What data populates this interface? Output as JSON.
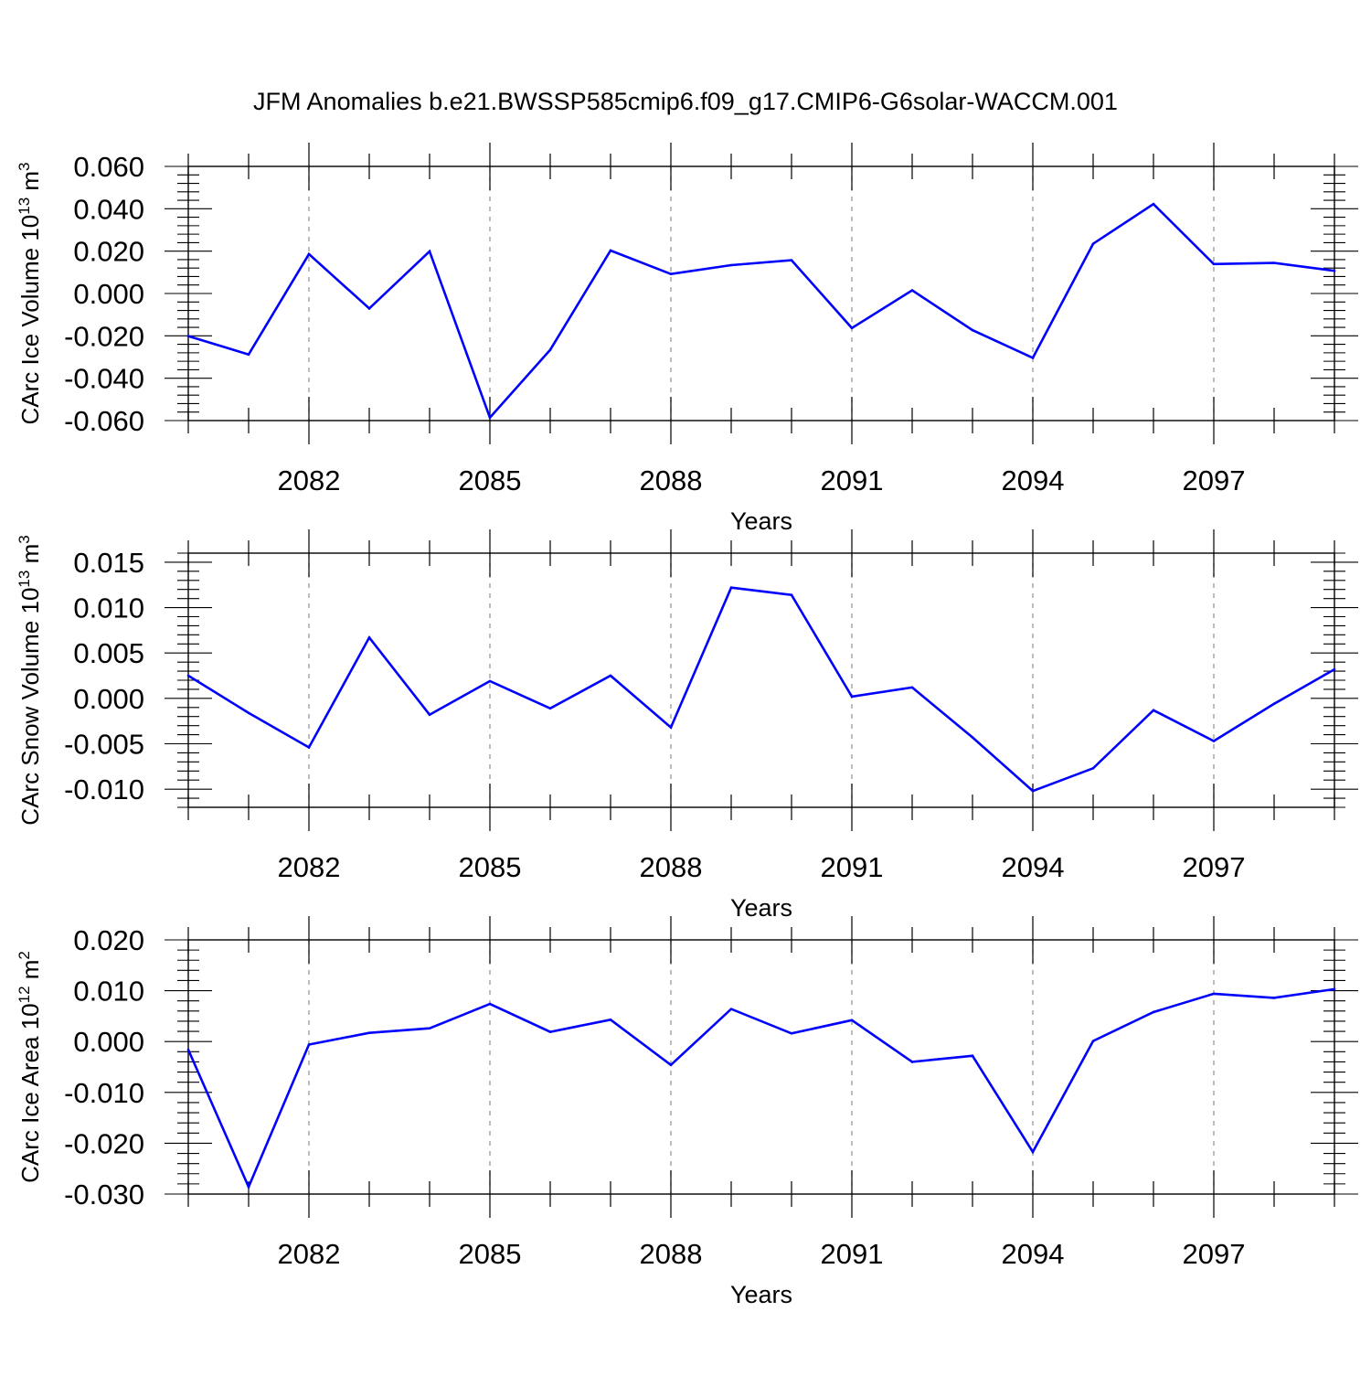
{
  "title": "JFM Anomalies b.e21.BWSSP585cmip6.f09_g17.CMIP6-G6solar-WACCM.001",
  "colors": {
    "line": "#0000ff",
    "axis": "#000000",
    "grid": "#999999"
  },
  "chart_data": [
    {
      "type": "line",
      "ylabel": {
        "main": "CArc Ice Volume 10",
        "exp": "13",
        "tail": " m",
        "unit_exp": "3"
      },
      "xlabel": "Years",
      "xlim": [
        2080,
        2099
      ],
      "ylim": [
        -0.06,
        0.06
      ],
      "yticks": [
        0.06,
        0.04,
        0.02,
        0.0,
        -0.02,
        -0.04,
        -0.06
      ],
      "ytick_labels": [
        "0.060",
        "0.040",
        "0.020",
        "0.000",
        "-0.020",
        "-0.040",
        "-0.060"
      ],
      "xticks": [
        2082,
        2085,
        2088,
        2091,
        2094,
        2097
      ],
      "xtick_labels": [
        "2082",
        "2085",
        "2088",
        "2091",
        "2094",
        "2097"
      ],
      "grid": "vertical dashed at labeled years",
      "x": [
        2080,
        2081,
        2082,
        2083,
        2084,
        2085,
        2086,
        2087,
        2088,
        2089,
        2090,
        2091,
        2092,
        2093,
        2094,
        2095,
        2096,
        2097,
        2098,
        2099
      ],
      "y": [
        -0.0201,
        -0.0288,
        0.0186,
        -0.0071,
        0.0199,
        -0.0586,
        -0.0266,
        0.0203,
        0.0092,
        0.0134,
        0.0157,
        -0.0163,
        0.0015,
        -0.0173,
        -0.0304,
        0.0235,
        0.0422,
        0.0139,
        0.0144,
        0.0107
      ]
    },
    {
      "type": "line",
      "ylabel": {
        "main": "CArc Snow Volume 10",
        "exp": "13",
        "tail": " m",
        "unit_exp": "3"
      },
      "xlabel": "Years",
      "xlim": [
        2080,
        2099
      ],
      "ylim": [
        -0.012,
        0.016
      ],
      "yticks": [
        0.015,
        0.01,
        0.005,
        0.0,
        -0.005,
        -0.01
      ],
      "ytick_labels": [
        "0.015",
        "0.010",
        "0.005",
        "0.000",
        "-0.005",
        "-0.010"
      ],
      "xticks": [
        2082,
        2085,
        2088,
        2091,
        2094,
        2097
      ],
      "xtick_labels": [
        "2082",
        "2085",
        "2088",
        "2091",
        "2094",
        "2097"
      ],
      "grid": "vertical dashed at labeled years",
      "x": [
        2080,
        2081,
        2082,
        2083,
        2084,
        2085,
        2086,
        2087,
        2088,
        2089,
        2090,
        2091,
        2092,
        2093,
        2094,
        2095,
        2096,
        2097,
        2098,
        2099
      ],
      "y": [
        0.0025,
        -0.0016,
        -0.0054,
        0.0067,
        -0.0018,
        0.0019,
        -0.0011,
        0.0025,
        -0.0032,
        0.0122,
        0.0114,
        0.0002,
        0.0012,
        -0.0043,
        -0.0102,
        -0.0077,
        -0.0013,
        -0.0047,
        -0.0006,
        0.0032
      ]
    },
    {
      "type": "line",
      "ylabel": {
        "main": "CArc Ice Area 10",
        "exp": "12",
        "tail": " m",
        "unit_exp": "2"
      },
      "xlabel": "Years",
      "xlim": [
        2080,
        2099
      ],
      "ylim": [
        -0.03,
        0.02
      ],
      "yticks": [
        0.02,
        0.01,
        0.0,
        -0.01,
        -0.02,
        -0.03
      ],
      "ytick_labels": [
        "0.020",
        "0.010",
        "0.000",
        "-0.010",
        "-0.020",
        "-0.030"
      ],
      "xticks": [
        2082,
        2085,
        2088,
        2091,
        2094,
        2097
      ],
      "xtick_labels": [
        "2082",
        "2085",
        "2088",
        "2091",
        "2094",
        "2097"
      ],
      "grid": "vertical dashed at labeled years",
      "x": [
        2080,
        2081,
        2082,
        2083,
        2084,
        2085,
        2086,
        2087,
        2088,
        2089,
        2090,
        2091,
        2092,
        2093,
        2094,
        2095,
        2096,
        2097,
        2098,
        2099
      ],
      "y": [
        -0.0016,
        -0.0286,
        -0.0006,
        0.0017,
        0.0026,
        0.0074,
        0.0019,
        0.0043,
        -0.0046,
        0.0064,
        0.0016,
        0.0042,
        -0.004,
        -0.0028,
        -0.0217,
        0.0001,
        0.0058,
        0.0094,
        0.0086,
        0.0103
      ]
    }
  ]
}
